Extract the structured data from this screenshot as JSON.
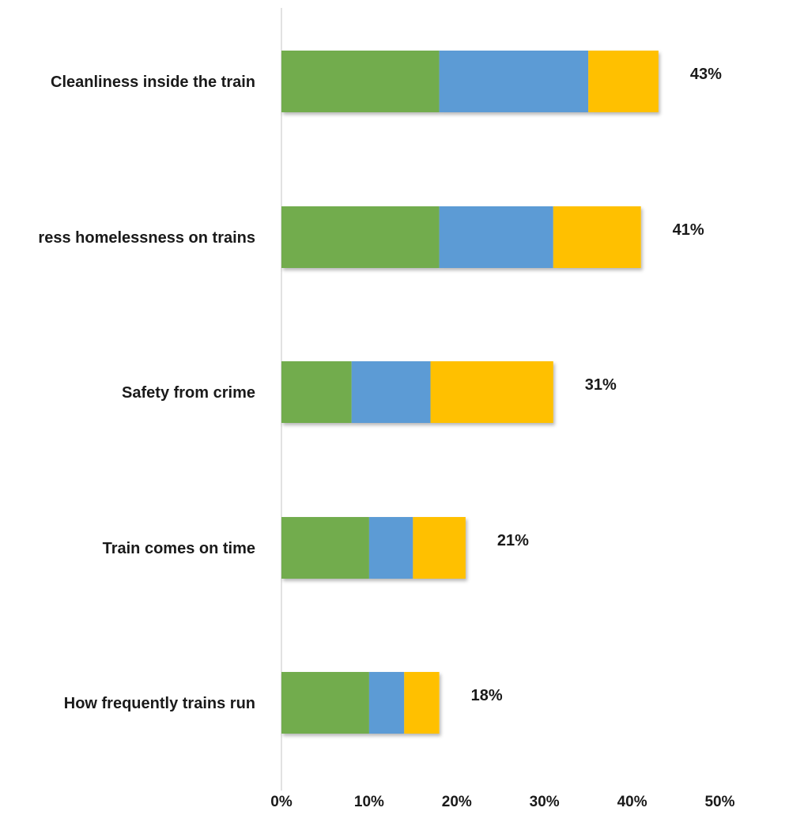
{
  "chart_data": {
    "type": "bar",
    "orientation": "horizontal",
    "stacked": true,
    "categories": [
      "Cleanliness inside the train",
      "ress homelessness on trains",
      "Safety from crime",
      "Train comes on time",
      "How frequently trains run"
    ],
    "series": [
      {
        "color": "#72AC4D",
        "values": [
          18,
          18,
          8,
          10,
          10
        ]
      },
      {
        "color": "#5B9BD5",
        "values": [
          17,
          13,
          9,
          5,
          4
        ]
      },
      {
        "color": "#FFC000",
        "values": [
          8,
          10,
          14,
          6,
          4
        ]
      }
    ],
    "totals": [
      43,
      41,
      31,
      21,
      18
    ],
    "total_labels": [
      "43%",
      "41%",
      "31%",
      "21%",
      "18%"
    ],
    "xlim": [
      0,
      50
    ],
    "x_ticks": [
      0,
      10,
      20,
      30,
      40,
      50
    ],
    "x_tick_labels": [
      "0%",
      "10%",
      "20%",
      "30%",
      "40%",
      "50%"
    ],
    "title": "",
    "xlabel": "",
    "ylabel": "",
    "legend": "none",
    "grid": false
  }
}
